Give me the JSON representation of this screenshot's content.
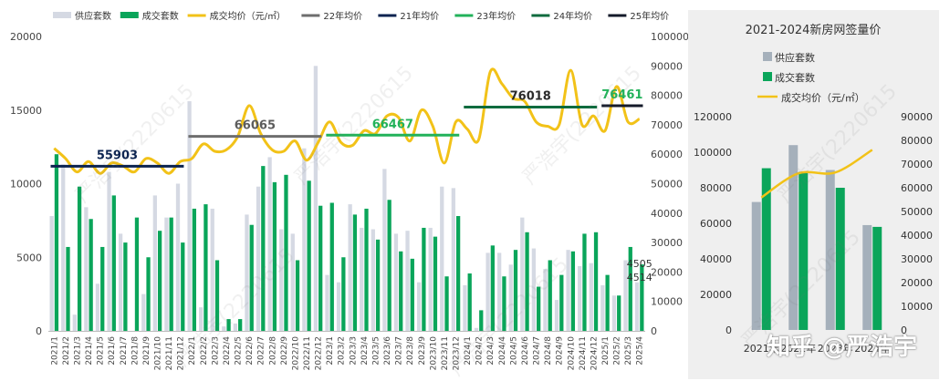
{
  "legend_main": [
    {
      "label": "供应套数",
      "kind": "bar",
      "color": "#d5d9e3"
    },
    {
      "label": "成交套数",
      "kind": "bar",
      "color": "#0aa55a"
    },
    {
      "label": "成交均价（元/㎡）",
      "kind": "line",
      "color": "#f2c218"
    },
    {
      "label": "22年均价",
      "kind": "line",
      "color": "#6e6e6e"
    },
    {
      "label": "21年均价",
      "kind": "line",
      "color": "#0b2350"
    },
    {
      "label": "23年均价",
      "kind": "line",
      "color": "#22b25a"
    },
    {
      "label": "24年均价",
      "kind": "line",
      "color": "#0f6b3e"
    },
    {
      "label": "25年均价",
      "kind": "line",
      "color": "#141a2a"
    }
  ],
  "watermark": {
    "text": "严浩宇(2220615",
    "credit": "知乎 @严浩宇"
  },
  "chart_data": [
    {
      "type": "bar",
      "title": "",
      "xlabel": "",
      "ylabel": "",
      "ylim_left": [
        0,
        20000
      ],
      "ylim_right": [
        0,
        100000
      ],
      "yticks_left": [
        "0",
        "5000",
        "10000",
        "15000",
        "20000"
      ],
      "yticks_right": [
        "0",
        "10000",
        "20000",
        "30000",
        "40000",
        "50000",
        "60000",
        "70000",
        "80000",
        "90000",
        "100000"
      ],
      "categories": [
        "2021/1",
        "2021/2",
        "2021/3",
        "2021/4",
        "2021/5",
        "2021/6",
        "2021/7",
        "2021/8",
        "2021/9",
        "2021/10",
        "2021/11",
        "2021/12",
        "2022/1",
        "2022/2",
        "2022/3",
        "2022/4",
        "2022/5",
        "2022/6",
        "2022/7",
        "2022/8",
        "2022/9",
        "2022/10",
        "2022/11",
        "2022/12",
        "2023/1",
        "2023/2",
        "2023/3",
        "2023/4",
        "2023/5",
        "2023/6",
        "2023/7",
        "2023/8",
        "2023/9",
        "2023/10",
        "2023/11",
        "2023/12",
        "2024/1",
        "2024/2",
        "2024/3",
        "2024/4",
        "2024/5",
        "2024/6",
        "2024/7",
        "2024/8",
        "2024/9",
        "2024/10",
        "2024/11",
        "2024/12",
        "2025/1",
        "2025/2",
        "2025/3",
        "2025/4"
      ],
      "series": [
        {
          "name": "供应套数",
          "kind": "bar",
          "color": "#d5d9e3",
          "values": [
            7800,
            11300,
            1100,
            8400,
            3200,
            10800,
            6600,
            0,
            2500,
            9200,
            7700,
            10000,
            15600,
            1600,
            8300,
            300,
            500,
            7900,
            9800,
            11800,
            6900,
            6600,
            12400,
            18000,
            3800,
            3300,
            8600,
            7000,
            6900,
            11000,
            6600,
            6800,
            3300,
            7000,
            9800,
            9700,
            3100,
            200,
            5300,
            5300,
            4500,
            7700,
            5600,
            4200,
            2100,
            5500,
            4400,
            4600,
            3100,
            2400,
            4800,
            3300
          ]
        },
        {
          "name": "成交套数",
          "kind": "bar",
          "color": "#0aa55a",
          "values": [
            12000,
            5700,
            9800,
            7600,
            5700,
            9200,
            6000,
            7700,
            5000,
            6800,
            7700,
            6000,
            8300,
            8600,
            4800,
            800,
            800,
            7200,
            11200,
            10100,
            10600,
            4800,
            10200,
            8500,
            8700,
            5000,
            7900,
            8300,
            6200,
            8900,
            5400,
            4900,
            7000,
            6400,
            3700,
            7800,
            3900,
            1400,
            5800,
            3700,
            5500,
            6700,
            3000,
            4800,
            3800,
            5400,
            6600,
            6700,
            3800,
            2400,
            5700,
            4514
          ]
        },
        {
          "name": "成交均价（元/㎡）",
          "kind": "line",
          "axis": "right",
          "color": "#f2c218",
          "values": [
            62000,
            58500,
            54000,
            57500,
            53500,
            57000,
            56000,
            54000,
            58500,
            57000,
            53500,
            57500,
            58500,
            63500,
            61000,
            61500,
            66000,
            76500,
            67000,
            61500,
            61000,
            64500,
            58000,
            64000,
            71000,
            64000,
            63000,
            68000,
            67000,
            73000,
            72500,
            64500,
            75000,
            69500,
            57000,
            71000,
            68500,
            65000,
            88000,
            84000,
            79000,
            78000,
            71000,
            69500,
            70000,
            88500,
            70000,
            73000,
            68000,
            83000,
            71000,
            72000
          ]
        },
        {
          "name": "21年均价",
          "kind": "avg",
          "color": "#0b2350",
          "value": 55903,
          "from": 0,
          "to": 11
        },
        {
          "name": "22年均价",
          "kind": "avg",
          "color": "#6e6e6e",
          "value": 66065,
          "from": 12,
          "to": 23
        },
        {
          "name": "23年均价",
          "kind": "avg",
          "color": "#22b25a",
          "value": 66467,
          "from": 24,
          "to": 35
        },
        {
          "name": "24年均价",
          "kind": "avg",
          "color": "#0f6b3e",
          "value": 76018,
          "from": 36,
          "to": 47
        },
        {
          "name": "25年均价",
          "kind": "avg",
          "color": "#141a2a",
          "value": 76461,
          "from": 48,
          "to": 51
        }
      ],
      "annotations": [
        {
          "text": "55903",
          "series": "21年均价"
        },
        {
          "text": "66065",
          "series": "22年均价"
        },
        {
          "text": "66467",
          "series": "23年均价"
        },
        {
          "text": "76018",
          "series": "24年均价"
        },
        {
          "text": "76461",
          "series": "25年均价"
        },
        {
          "text": "4505",
          "category": "2025/4"
        },
        {
          "text": "4514",
          "category": "2025/4"
        }
      ]
    },
    {
      "type": "bar",
      "title": "2021-2024新房网签量价",
      "xlabel": "",
      "ylabel": "",
      "background": "#efefef",
      "legend_position": "top-left",
      "ylim_left": [
        0,
        120000
      ],
      "ylim_right": [
        0,
        90000
      ],
      "yticks_left": [
        "0",
        "20000",
        "40000",
        "60000",
        "80000",
        "100000",
        "120000"
      ],
      "yticks_right": [
        "0",
        "10000",
        "20000",
        "30000",
        "40000",
        "50000",
        "60000",
        "70000",
        "80000",
        "90000"
      ],
      "categories": [
        "2021年",
        "2022年",
        "2023年",
        "2024年"
      ],
      "series": [
        {
          "name": "供应套数",
          "kind": "bar",
          "color": "#a5b0bb",
          "values": [
            72000,
            104000,
            90000,
            59000
          ]
        },
        {
          "name": "成交套数",
          "kind": "bar",
          "color": "#0aa55a",
          "values": [
            91000,
            89000,
            80000,
            58000
          ]
        },
        {
          "name": "成交均价（元/㎡）",
          "kind": "line",
          "axis": "right",
          "color": "#f2c218",
          "values": [
            55903,
            66065,
            66467,
            76018
          ]
        }
      ]
    }
  ]
}
